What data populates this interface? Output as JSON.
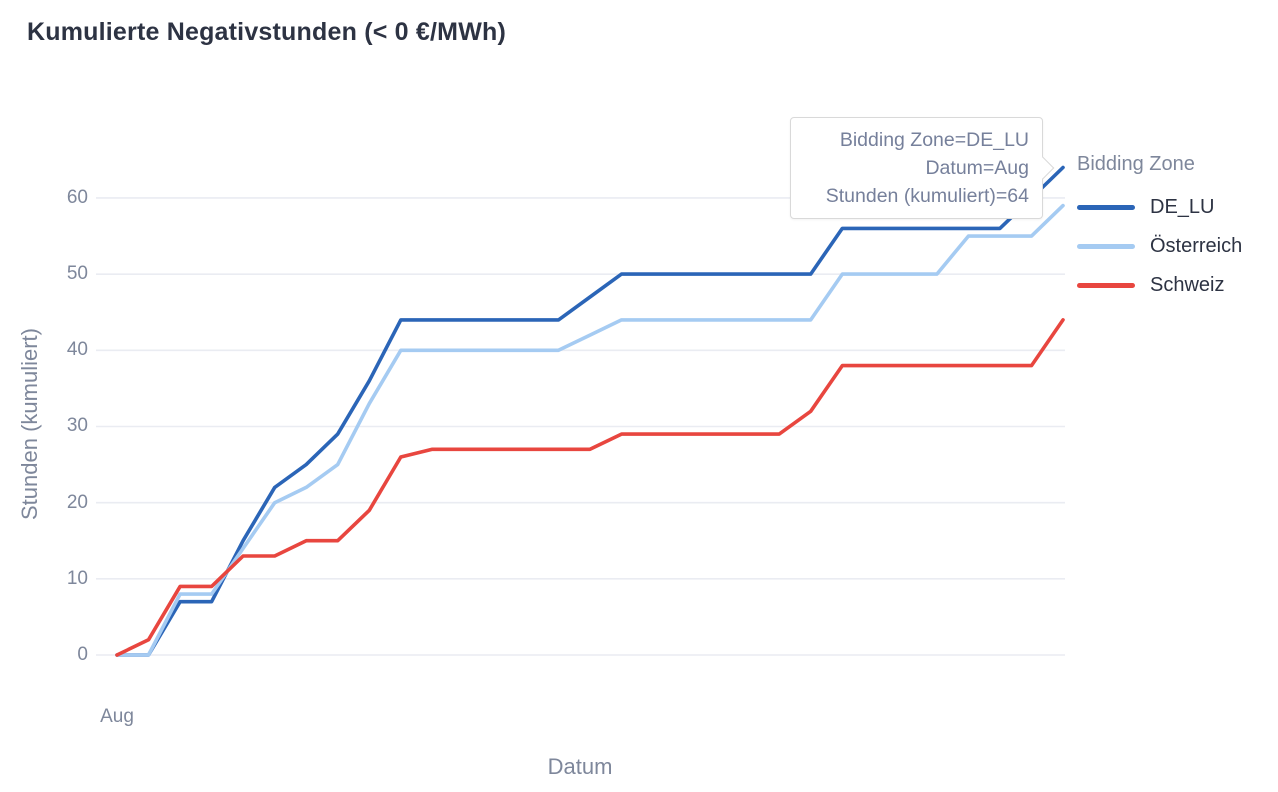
{
  "chart_data": {
    "type": "line",
    "title": "Kumulierte Negativstunden (< 0 €/MWh)",
    "xlabel": "Datum",
    "ylabel": "Stunden (kumuliert)",
    "legend_title": "Bidding Zone",
    "legend_position": "right",
    "grid": "horizontal",
    "x_tick_labels": [
      "Aug"
    ],
    "y_ticks": [
      0,
      10,
      20,
      30,
      40,
      50,
      60
    ],
    "ylim": [
      0,
      65
    ],
    "x_days_august": [
      1,
      2,
      3,
      4,
      5,
      6,
      7,
      8,
      9,
      10,
      11,
      12,
      13,
      14,
      15,
      16,
      17,
      18,
      19,
      20,
      21,
      22,
      23,
      24,
      25,
      26,
      27,
      28,
      29,
      30,
      31
    ],
    "series": [
      {
        "name": "DE_LU",
        "color": "#2b65b7",
        "values": [
          0,
          0,
          7,
          7,
          15,
          22,
          25,
          29,
          36,
          44,
          44,
          44,
          44,
          44,
          44,
          47,
          50,
          50,
          50,
          50,
          50,
          50,
          50,
          56,
          56,
          56,
          56,
          56,
          56,
          60,
          64
        ]
      },
      {
        "name": "Österreich",
        "color": "#a5cbf2",
        "values": [
          0,
          0,
          8,
          8,
          14,
          20,
          22,
          25,
          33,
          40,
          40,
          40,
          40,
          40,
          40,
          42,
          44,
          44,
          44,
          44,
          44,
          44,
          44,
          50,
          50,
          50,
          50,
          55,
          55,
          55,
          59
        ]
      },
      {
        "name": "Schweiz",
        "color": "#e8463f",
        "values": [
          0,
          2,
          9,
          9,
          13,
          13,
          15,
          15,
          19,
          26,
          27,
          27,
          27,
          27,
          27,
          27,
          29,
          29,
          29,
          29,
          29,
          29,
          32,
          38,
          38,
          38,
          38,
          38,
          38,
          38,
          44
        ]
      }
    ]
  },
  "tooltip": {
    "lines": [
      "Bidding Zone=DE_LU",
      "Datum=Aug",
      "Stunden (kumuliert)=64"
    ]
  },
  "colors": {
    "title_text": "#2d3343",
    "axis_text": "#7e879b",
    "gridline": "#eaecf2",
    "tooltip_border": "#d9d9d9",
    "tooltip_text": "#76809b"
  }
}
